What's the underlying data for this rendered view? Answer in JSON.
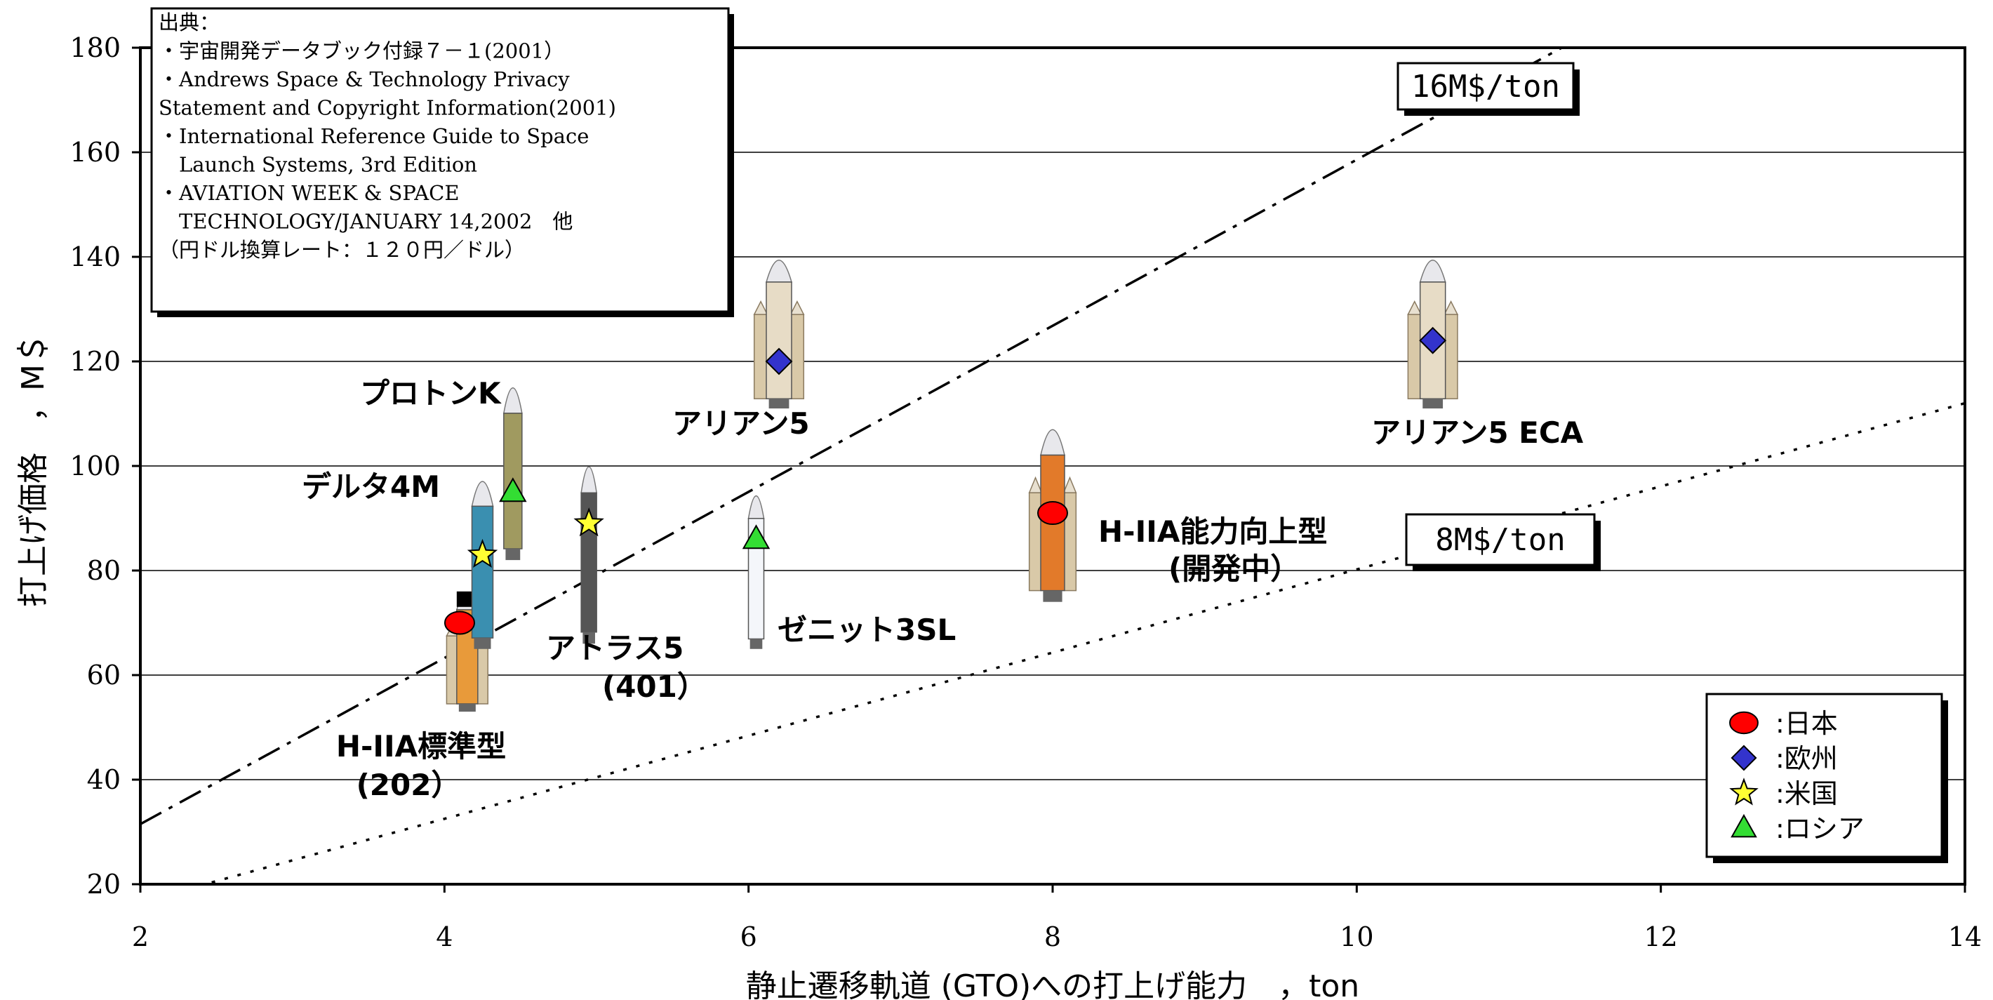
{
  "chart_data": {
    "type": "scatter",
    "xlabel": "静止遷移軌道 (GTO)への打上げ能力　，ton",
    "ylabel": "打上げ価格　，M＄",
    "xlim": [
      2,
      14
    ],
    "ylim": [
      20,
      180
    ],
    "x_ticks": [
      "2",
      "4",
      "6",
      "8",
      "10",
      "12",
      "14"
    ],
    "y_ticks": [
      "20",
      "40",
      "60",
      "80",
      "100",
      "120",
      "140",
      "160",
      "180"
    ],
    "grid": "horizontal",
    "points": [
      {
        "name": "H-IIA標準型",
        "name2": "(202）",
        "x": 4.1,
        "y": 70,
        "region": "japan"
      },
      {
        "name": "H-IIA能力向上型",
        "name2": "(開発中）",
        "x": 8.0,
        "y": 91,
        "region": "japan"
      },
      {
        "name": "アリアン5",
        "name2": "",
        "x": 6.2,
        "y": 120,
        "region": "europe"
      },
      {
        "name": "アリアン5 ECA",
        "name2": "",
        "x": 10.5,
        "y": 124,
        "region": "europe"
      },
      {
        "name": "デルタ4M",
        "name2": "",
        "x": 4.25,
        "y": 83,
        "region": "usa"
      },
      {
        "name": "アトラス5",
        "name2": "(401）",
        "x": 4.95,
        "y": 89,
        "region": "usa"
      },
      {
        "name": "プロトンK",
        "name2": "",
        "x": 4.45,
        "y": 95,
        "region": "russia"
      },
      {
        "name": "ゼニット3SL",
        "name2": "",
        "x": 6.05,
        "y": 86,
        "region": "russia"
      }
    ],
    "reference_lines": [
      {
        "label": "16M$/ton",
        "slope": 16,
        "style": "dash-dot"
      },
      {
        "label": "8M$/ton",
        "slope": 8,
        "style": "dotted"
      }
    ],
    "legend": {
      "position": "bottom-right",
      "entries": [
        {
          "label": ":日本",
          "marker": "circle",
          "color": "#ff0000"
        },
        {
          "label": ":欧州",
          "marker": "diamond",
          "color": "#3333cc"
        },
        {
          "label": ":米国",
          "marker": "star",
          "color": "#ffff33"
        },
        {
          "label": ":ロシア",
          "marker": "triangle",
          "color": "#33dd33"
        }
      ]
    },
    "source_note": [
      "出典：",
      "・宇宙開発データブック付録７－１(2001）",
      "・Andrews Space & Technology Privacy",
      "Statement and Copyright Information(2001)",
      "・International Reference Guide to Space",
      "　Launch Systems, 3rd Edition",
      "・AVIATION WEEK & SPACE",
      "　TECHNOLOGY/JANUARY 14,2002　他",
      "（円ドル換算レート：１２０円／ドル）"
    ]
  }
}
